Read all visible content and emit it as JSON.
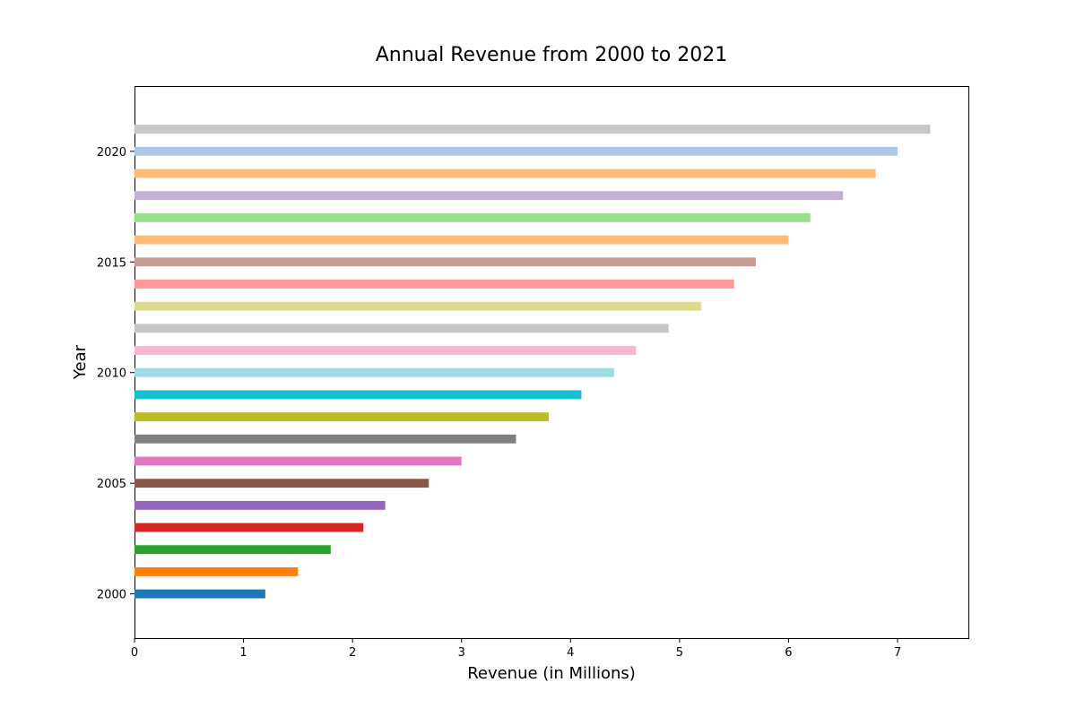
{
  "chart_data": {
    "type": "bar",
    "orientation": "horizontal",
    "title": "Annual Revenue from 2000 to 2021",
    "xlabel": "Revenue (in Millions)",
    "ylabel": "Year",
    "xlim": [
      0,
      7.65
    ],
    "ylim": [
      1998.0,
      2022.95
    ],
    "x_ticks": [
      "0",
      "1",
      "2",
      "3",
      "4",
      "5",
      "6",
      "7"
    ],
    "y_ticks": [
      "2000",
      "2005",
      "2010",
      "2015",
      "2020"
    ],
    "grid": false,
    "legend": "none",
    "categories": [
      2000,
      2001,
      2002,
      2003,
      2004,
      2005,
      2006,
      2007,
      2008,
      2009,
      2010,
      2011,
      2012,
      2013,
      2014,
      2015,
      2016,
      2017,
      2018,
      2019,
      2020,
      2021
    ],
    "values": [
      1.2,
      1.5,
      1.8,
      2.1,
      2.3,
      2.7,
      3.0,
      3.5,
      3.8,
      4.1,
      4.4,
      4.6,
      4.9,
      5.2,
      5.5,
      5.7,
      6.0,
      6.2,
      6.5,
      6.8,
      7.0,
      7.3
    ],
    "colors": [
      "#1f77b4",
      "#ff7f0e",
      "#2ca02c",
      "#d62728",
      "#9467bd",
      "#8c564b",
      "#e377c2",
      "#7f7f7f",
      "#bcbd22",
      "#17becf",
      "#9edae5",
      "#f7b6d2",
      "#c7c7c7",
      "#dbdb8d",
      "#ff9896",
      "#c49c94",
      "#ffbb78",
      "#98df8a",
      "#c5b0d5",
      "#ffbb78",
      "#aec7e8",
      "#c7c7c7"
    ]
  }
}
